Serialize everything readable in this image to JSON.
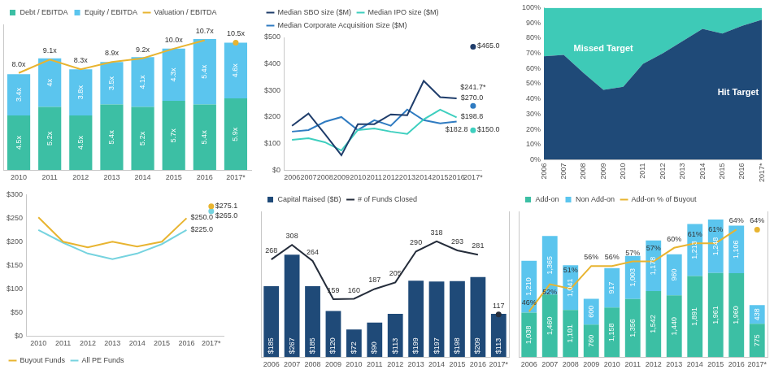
{
  "chart_data": [
    {
      "type": "bar",
      "stacked": true,
      "data_labels": true,
      "grid": false,
      "legend": "top left",
      "tick_labels": "x",
      "categories": [
        "2010",
        "2011",
        "2012",
        "2013",
        "2014",
        "2015",
        "2016",
        "2017*"
      ],
      "ylim": [
        0,
        12
      ],
      "series": [
        {
          "name": "Debt / EBITDA",
          "color": "#3cbfa4",
          "values": [
            4.5,
            5.2,
            4.5,
            5.4,
            5.2,
            5.7,
            5.4,
            5.9
          ],
          "value_labels": [
            "4.5x",
            "5.2x",
            "4.5x",
            "5.4x",
            "5.2x",
            "5.7x",
            "5.4x",
            "5.9x"
          ]
        },
        {
          "name": "Equity / EBITDA",
          "color": "#5bc5ee",
          "values": [
            3.4,
            4,
            3.8,
            3.5,
            4.1,
            4.3,
            5.4,
            4.6
          ],
          "value_labels": [
            "3.4x",
            "4x",
            "3.8x",
            "3.5x",
            "4.1x",
            "4.3x",
            "5.4x",
            "4.6x"
          ]
        },
        {
          "name": "Valuation / EBITDA",
          "type": "line",
          "color": "#e8b430",
          "values": [
            8.0,
            9.1,
            8.3,
            8.9,
            9.2,
            10.0,
            10.7,
            10.5
          ],
          "value_labels": [
            "8.0x",
            "9.1x",
            "8.3x",
            "8.9x",
            "9.2x",
            "10.0x",
            "10.7x",
            "10.5x"
          ]
        }
      ]
    },
    {
      "type": "line",
      "data_labels": true,
      "grid": false,
      "legend": "top left",
      "categories": [
        "2006",
        "2007",
        "2008",
        "2009",
        "2010",
        "2011",
        "2012",
        "2013",
        "2014",
        "2015",
        "2016",
        "2017*"
      ],
      "ylim": [
        0,
        500
      ],
      "yticks": [
        {
          "value": 0,
          "label": "$0"
        },
        {
          "value": 100,
          "label": "$100"
        },
        {
          "value": 200,
          "label": "$200"
        },
        {
          "value": 300,
          "label": "$300"
        },
        {
          "value": 400,
          "label": "$400"
        },
        {
          "value": 500,
          "label": "$500"
        }
      ],
      "series": [
        {
          "name": "Median SBO size ($M)",
          "color": "#1f3d6b",
          "values": [
            167,
            213,
            136,
            56,
            173,
            173,
            210,
            207,
            336,
            275,
            270.0,
            465.0
          ],
          "value_labels": [
            null,
            null,
            null,
            null,
            null,
            null,
            null,
            null,
            null,
            null,
            "$270.0",
            "$465.0"
          ]
        },
        {
          "name": "Median IPO size ($M)",
          "color": "#3ecfbf",
          "values": [
            114,
            120,
            105,
            74,
            151,
            157,
            145,
            136,
            191,
            228,
            198.8,
            150.0
          ],
          "value_labels": [
            null,
            null,
            null,
            null,
            null,
            null,
            null,
            null,
            null,
            null,
            "$198.8",
            "$150.0"
          ]
        },
        {
          "name": "Median Corporate Acquisition Size ($M)",
          "color": "#2f7bc1",
          "values": [
            145,
            151,
            182,
            200,
            151,
            188,
            167,
            228,
            188,
            176,
            182.8,
            241.7
          ],
          "value_labels": [
            null,
            null,
            null,
            null,
            null,
            null,
            null,
            null,
            null,
            null,
            "$182.8",
            "$241.7*"
          ]
        }
      ]
    },
    {
      "type": "area",
      "stacked": true,
      "grid": false,
      "legend": "inside",
      "categories": [
        "2006",
        "2007",
        "2008",
        "2009",
        "2010",
        "2011",
        "2012",
        "2013",
        "2014",
        "2015",
        "2016",
        "2017*"
      ],
      "ylim": [
        0,
        100
      ],
      "yticks": [
        {
          "value": 0,
          "label": "0%"
        },
        {
          "value": 10,
          "label": "10%"
        },
        {
          "value": 20,
          "label": "20%"
        },
        {
          "value": 30,
          "label": "30%"
        },
        {
          "value": 40,
          "label": "40%"
        },
        {
          "value": 50,
          "label": "50%"
        },
        {
          "value": 60,
          "label": "60%"
        },
        {
          "value": 70,
          "label": "70%"
        },
        {
          "value": 80,
          "label": "80%"
        },
        {
          "value": 90,
          "label": "90%"
        },
        {
          "value": 100,
          "label": "100%"
        }
      ],
      "series": [
        {
          "name": "Hit Target",
          "color": "#1f4a78",
          "values": [
            68,
            69,
            57,
            46,
            48,
            63,
            70,
            78,
            86,
            83,
            88,
            92
          ]
        },
        {
          "name": "Missed Target",
          "color": "#3ecab7",
          "values": [
            32,
            31,
            43,
            54,
            52,
            37,
            30,
            22,
            14,
            17,
            12,
            8
          ]
        }
      ]
    },
    {
      "type": "line",
      "data_labels": true,
      "grid": false,
      "legend": "bottom left",
      "categories": [
        "2010",
        "2011",
        "2012",
        "2013",
        "2014",
        "2015",
        "2016",
        "2017*"
      ],
      "ylim": [
        0,
        300
      ],
      "yticks": [
        {
          "value": 0,
          "label": "$0"
        },
        {
          "value": 50,
          "label": "$50"
        },
        {
          "value": 100,
          "label": "$100"
        },
        {
          "value": 150,
          "label": "$150"
        },
        {
          "value": 200,
          "label": "$200"
        },
        {
          "value": 250,
          "label": "$250"
        },
        {
          "value": 300,
          "label": "$300"
        }
      ],
      "series": [
        {
          "name": "Buyout Funds",
          "color": "#e8b430",
          "values": [
            252,
            200,
            188,
            200,
            190,
            200,
            250.0,
            275.1
          ],
          "value_labels": [
            null,
            null,
            null,
            null,
            null,
            null,
            "$250.0",
            "$275.1"
          ]
        },
        {
          "name": "All PE Funds",
          "color": "#76d3df",
          "values": [
            225,
            198,
            175,
            163,
            175,
            195,
            225.0,
            265.0
          ],
          "value_labels": [
            null,
            null,
            null,
            null,
            null,
            null,
            "$225.0",
            "$265.0"
          ]
        }
      ]
    },
    {
      "type": "bar",
      "data_labels": true,
      "grid": false,
      "legend": "top left",
      "tick_labels": "x",
      "categories": [
        "2006",
        "2007",
        "2008",
        "2009",
        "2010",
        "2011",
        "2012",
        "2013",
        "2014",
        "2015",
        "2016",
        "2017*"
      ],
      "ylim": [
        0,
        380
      ],
      "y2lim": [
        0,
        400
      ],
      "series": [
        {
          "name": "Capital Raised ($B)",
          "color": "#1f4a78",
          "values": [
            185,
            267,
            185,
            120,
            72,
            90,
            113,
            199,
            197,
            198,
            209,
            113
          ],
          "value_labels": [
            "$185",
            "$267",
            "$185",
            "$120",
            "$72",
            "$90",
            "$113",
            "$199",
            "$197",
            "$198",
            "$209",
            "$113"
          ]
        },
        {
          "name": "# of Funds Closed",
          "type": "line",
          "axis": "y2",
          "color": "#252d3b",
          "values": [
            268,
            308,
            264,
            159,
            160,
            187,
            205,
            290,
            318,
            293,
            281,
            117
          ]
        }
      ]
    },
    {
      "type": "bar",
      "stacked": true,
      "data_labels": true,
      "grid": false,
      "legend": "top left",
      "tick_labels": "x",
      "categories": [
        "2006",
        "2007",
        "2008",
        "2009",
        "2010",
        "2011",
        "2012",
        "2013",
        "2014",
        "2015",
        "2016",
        "2017*"
      ],
      "ylim": [
        0,
        3400
      ],
      "y2lim": [
        36,
        68
      ],
      "series": [
        {
          "name": "Add-on",
          "color": "#3cbfa4",
          "values": [
            1038,
            1460,
            1101,
            760,
            1158,
            1356,
            1542,
            1440,
            1891,
            1961,
            1960,
            775
          ],
          "value_labels": [
            "1,038",
            "1,460",
            "1,101",
            "760",
            "1,158",
            "1,356",
            "1,542",
            "1,440",
            "1,891",
            "1,961",
            "1,960",
            "775"
          ]
        },
        {
          "name": "Non Add-on",
          "color": "#5bc5ee",
          "values": [
            1210,
            1365,
            1041,
            600,
            917,
            1003,
            1178,
            960,
            1213,
            1248,
            1106,
            438
          ],
          "value_labels": [
            "1,210",
            "1,365",
            "1,041",
            "600",
            "917",
            "1,003",
            "1,178",
            "960",
            "1,213",
            "1,248",
            "1,106",
            "438"
          ]
        },
        {
          "name": "Add-on % of Buyout",
          "type": "line",
          "axis": "y2",
          "color": "#e8b430",
          "values": [
            46,
            52,
            51,
            56,
            56,
            57,
            57,
            60,
            61,
            61,
            64,
            64
          ],
          "value_labels": [
            "46%",
            "52%",
            "51%",
            "56%",
            "56%",
            "57%",
            "57%",
            "60%",
            "61%",
            "61%",
            "64%",
            "64%"
          ]
        }
      ]
    }
  ]
}
